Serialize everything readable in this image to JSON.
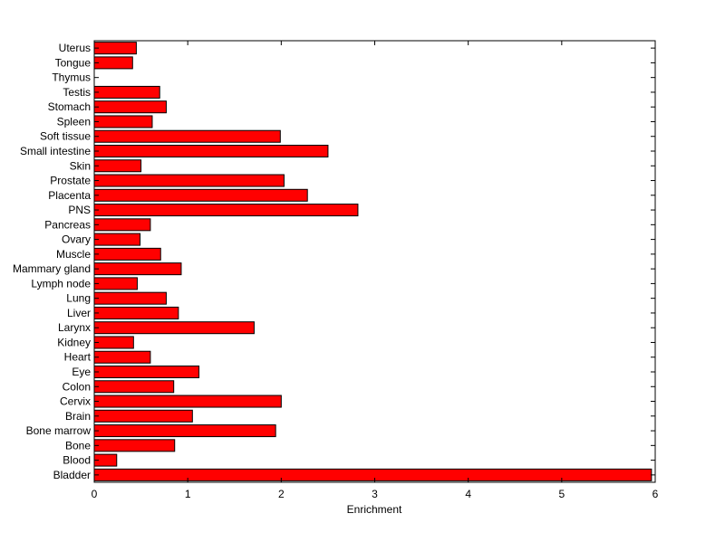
{
  "chart_data": {
    "type": "bar",
    "orientation": "horizontal",
    "title": "",
    "xlabel": "Enrichment",
    "ylabel": "",
    "xlim": [
      0,
      6
    ],
    "xticks": [
      "0",
      "1",
      "2",
      "3",
      "4",
      "5",
      "6"
    ],
    "grid": false,
    "legend": "none",
    "categories": [
      "Bladder",
      "Blood",
      "Bone",
      "Bone marrow",
      "Brain",
      "Cervix",
      "Colon",
      "Eye",
      "Heart",
      "Kidney",
      "Larynx",
      "Liver",
      "Lung",
      "Lymph node",
      "Mammary gland",
      "Muscle",
      "Ovary",
      "Pancreas",
      "PNS",
      "Placenta",
      "Prostate",
      "Skin",
      "Small intestine",
      "Soft tissue",
      "Spleen",
      "Stomach",
      "Testis",
      "Thymus",
      "Tongue",
      "Uterus"
    ],
    "values": [
      5.96,
      0.24,
      0.86,
      1.94,
      1.05,
      2.0,
      0.85,
      1.12,
      0.6,
      0.42,
      1.71,
      0.9,
      0.77,
      0.46,
      0.93,
      0.71,
      0.49,
      0.6,
      2.82,
      2.28,
      2.03,
      0.5,
      2.5,
      1.99,
      0.62,
      0.77,
      0.7,
      0.0,
      0.41,
      0.45
    ],
    "colors": {
      "bar_fill": "#ff0000",
      "bar_edge": "#000000",
      "axis": "#000000"
    }
  }
}
